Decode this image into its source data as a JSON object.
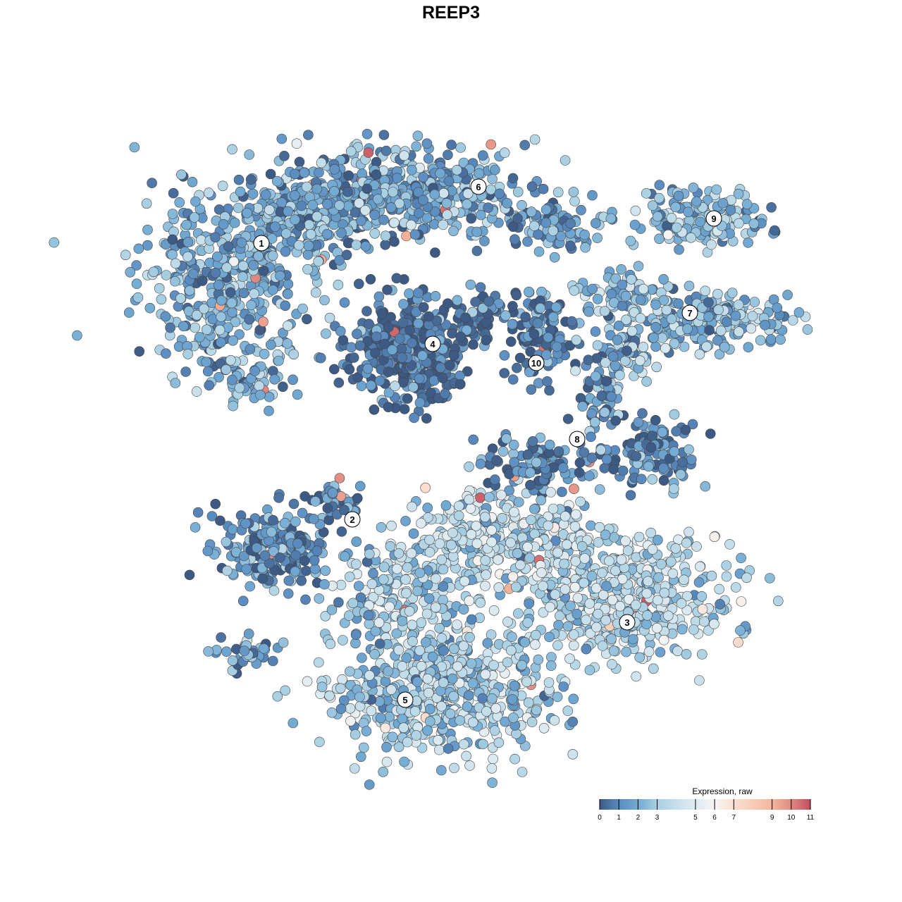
{
  "chart_data": {
    "type": "scatter",
    "title": "REEP3",
    "xlabel": "",
    "ylabel": "",
    "grid": false,
    "axes_visible": false,
    "clusters": [
      {
        "label": "1",
        "mean_expression": 2.0
      },
      {
        "label": "2",
        "mean_expression": 1.2
      },
      {
        "label": "3",
        "mean_expression": 3.6
      },
      {
        "label": "4",
        "mean_expression": 0.6
      },
      {
        "label": "5",
        "mean_expression": 3.0
      },
      {
        "label": "6",
        "mean_expression": 1.8
      },
      {
        "label": "7",
        "mean_expression": 2.4
      },
      {
        "label": "8",
        "mean_expression": 1.1
      },
      {
        "label": "9",
        "mean_expression": 2.4
      },
      {
        "label": "10",
        "mean_expression": 0.7
      }
    ],
    "colorbar": {
      "title": "Expression, raw",
      "range": [
        0,
        11
      ],
      "ticks": [
        "0",
        "1",
        "2",
        "3",
        "5",
        "6",
        "7",
        "9",
        "10",
        "11"
      ],
      "colors": [
        "#3d5a84",
        "#5a8bbf",
        "#72aad3",
        "#a9d0e3",
        "#d4e6ef",
        "#f5f5f5",
        "#fbe0d2",
        "#f4b69c",
        "#df8a82",
        "#c24d5e"
      ],
      "placement": "bottom-right"
    }
  }
}
